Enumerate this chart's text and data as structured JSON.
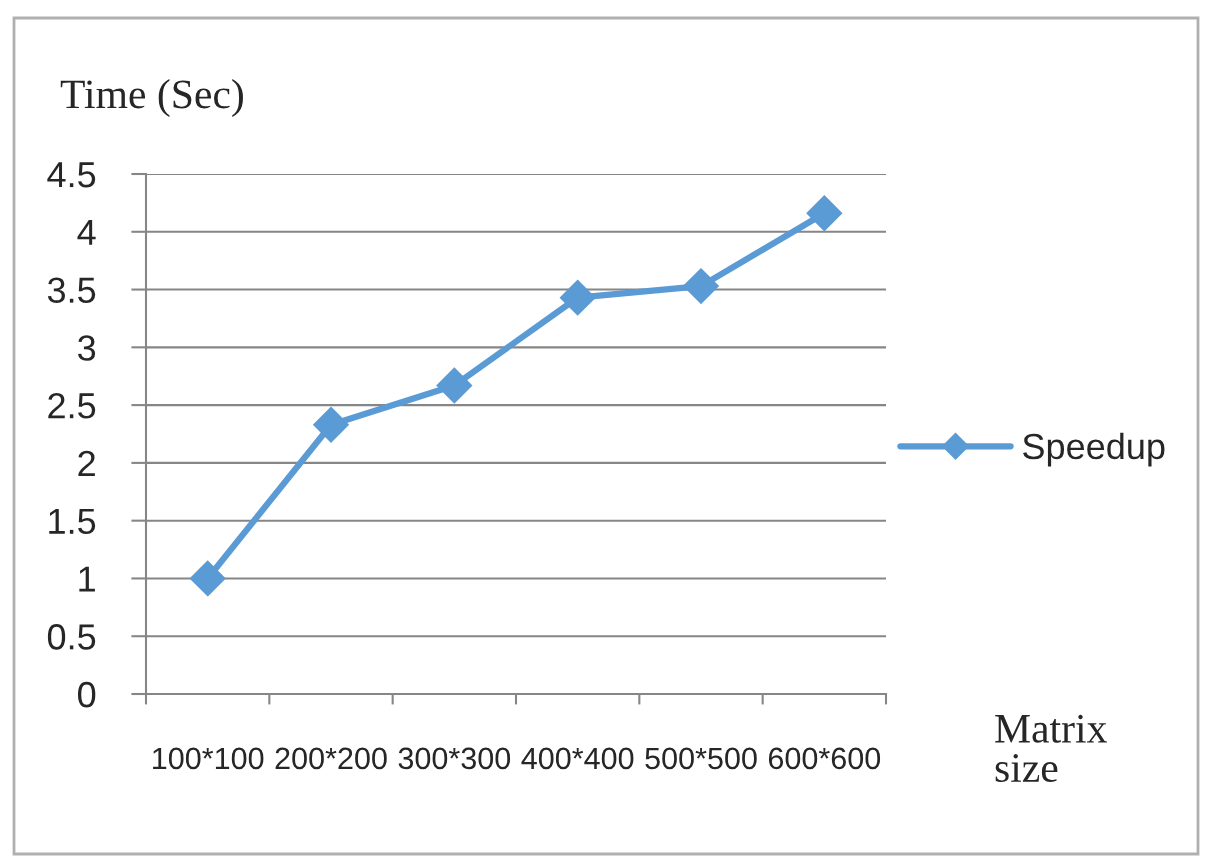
{
  "chart_data": {
    "type": "line",
    "ylabel": "Time (Sec)",
    "xlabel": "Matrix size",
    "categories": [
      "100*100",
      "200*200",
      "300*300",
      "400*400",
      "500*500",
      "600*600"
    ],
    "series": [
      {
        "name": "Speedup",
        "color": "#5b9bd5",
        "values": [
          1,
          2.33,
          2.67,
          3.43,
          3.53,
          4.16
        ]
      }
    ],
    "ylim": [
      0,
      4.5
    ],
    "yticks": [
      0,
      0.5,
      1,
      1.5,
      2,
      2.5,
      3,
      3.5,
      4,
      4.5
    ],
    "grid": "y",
    "legend": "right",
    "marker": "diamond",
    "line_style": "solid"
  }
}
